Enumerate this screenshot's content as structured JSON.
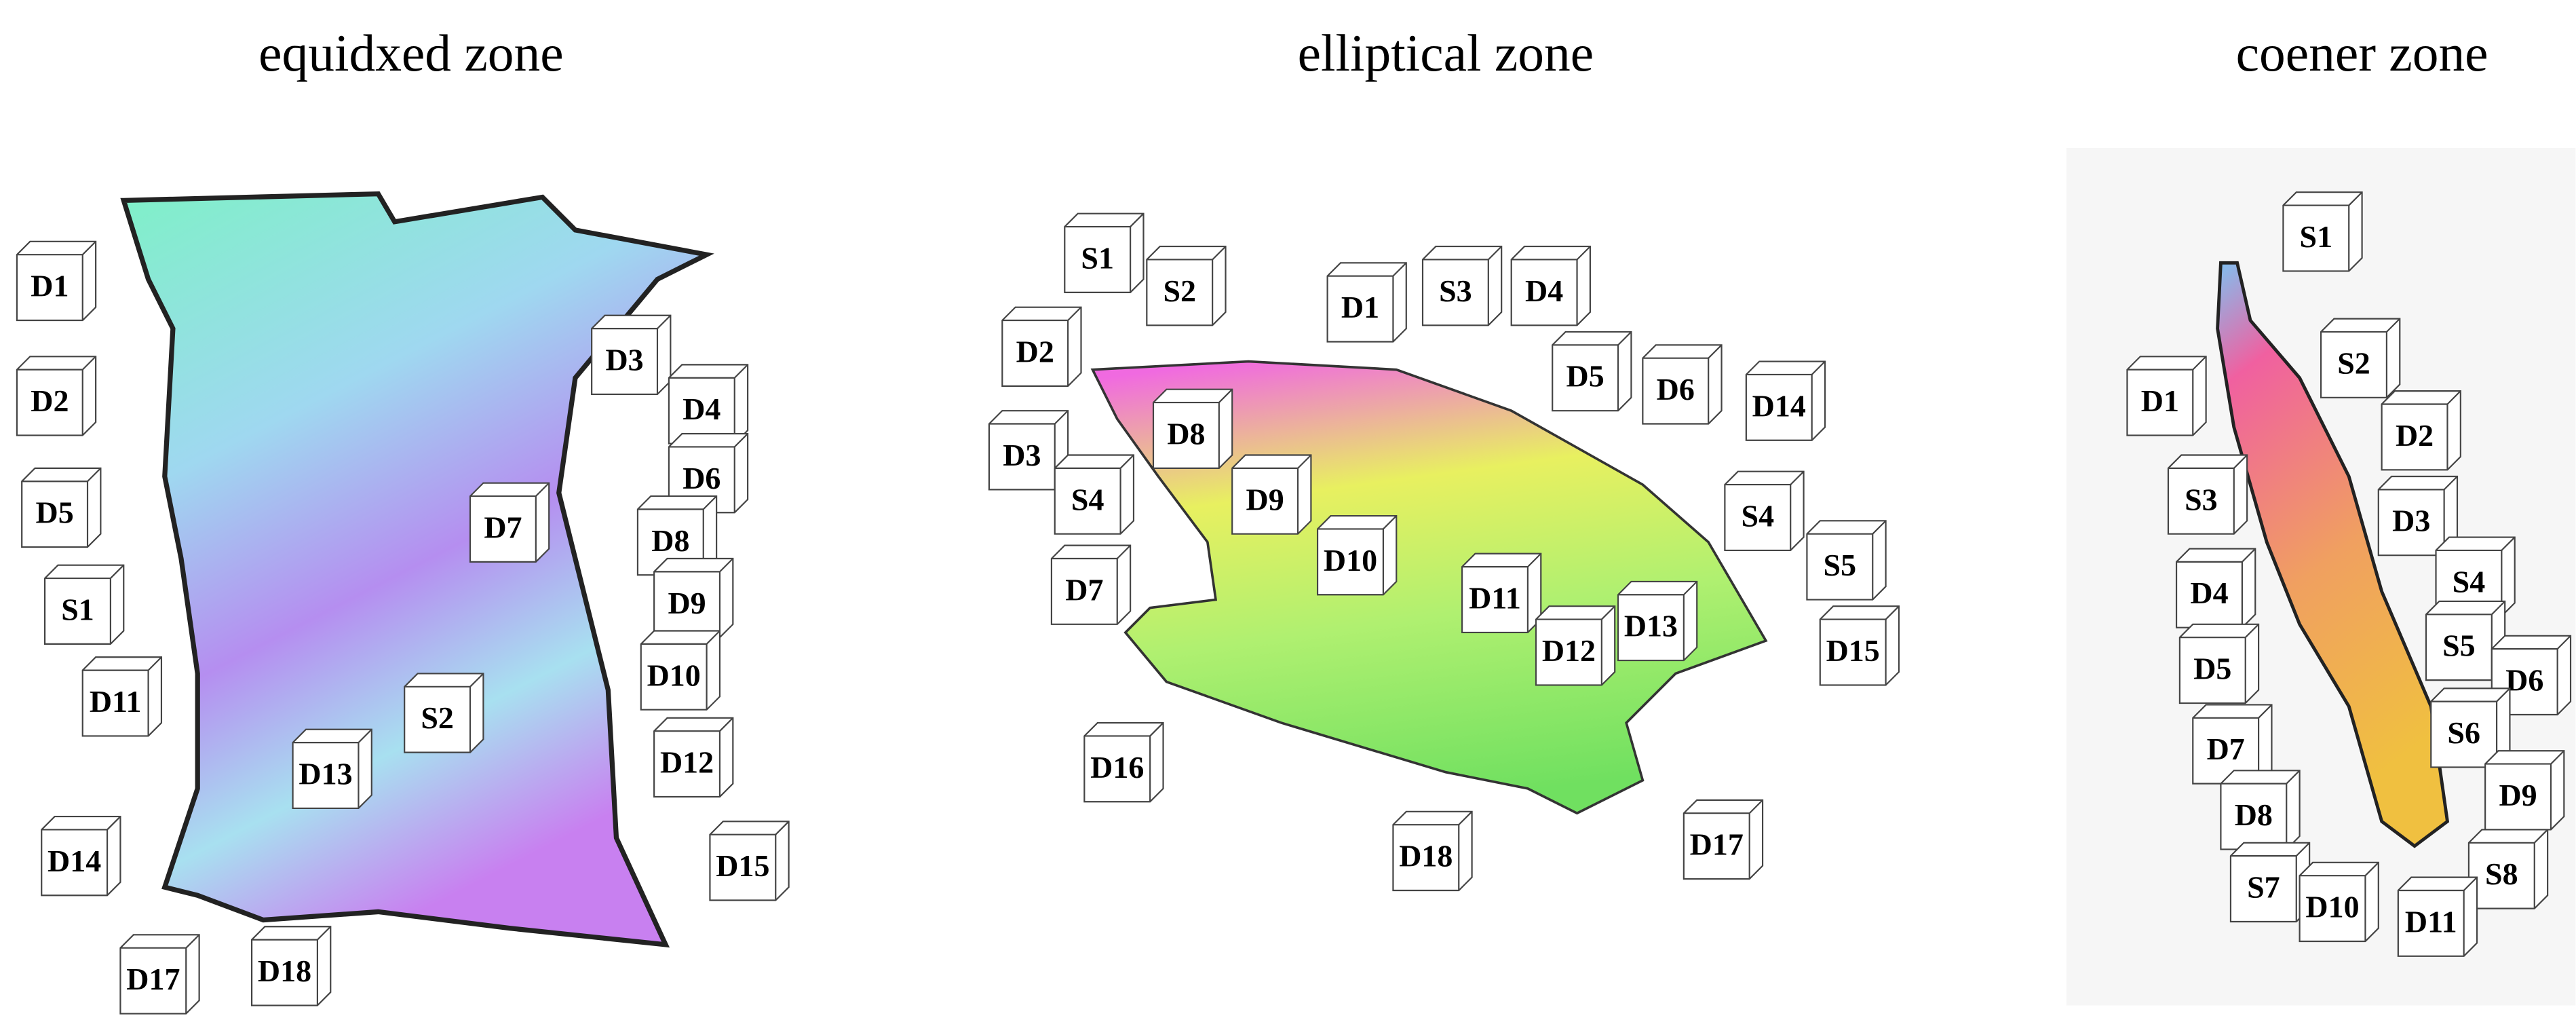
{
  "panels": [
    {
      "title": "equidxed zone",
      "labels": [
        "D1",
        "D2",
        "D5",
        "S1",
        "D11",
        "D14",
        "D17",
        "D18",
        "D13",
        "S2",
        "D7",
        "D3",
        "D4",
        "D6",
        "D8",
        "D9",
        "D10",
        "D12",
        "D15"
      ]
    },
    {
      "title": "elliptical zone",
      "labels": [
        "S1",
        "S2",
        "D1",
        "S3",
        "D4",
        "D2",
        "D5",
        "D6",
        "D14",
        "D3",
        "D8",
        "S4",
        "D9",
        "S4",
        "D10",
        "S5",
        "D7",
        "D11",
        "D13",
        "D12",
        "D15",
        "D16",
        "D18",
        "D17"
      ]
    },
    {
      "title": "coener zone",
      "labels": [
        "S1",
        "S2",
        "D1",
        "D2",
        "S3",
        "D3",
        "S4",
        "D4",
        "S5",
        "D5",
        "D6",
        "S6",
        "D7",
        "D9",
        "D8",
        "S8",
        "S7",
        "D10",
        "D11"
      ]
    }
  ]
}
